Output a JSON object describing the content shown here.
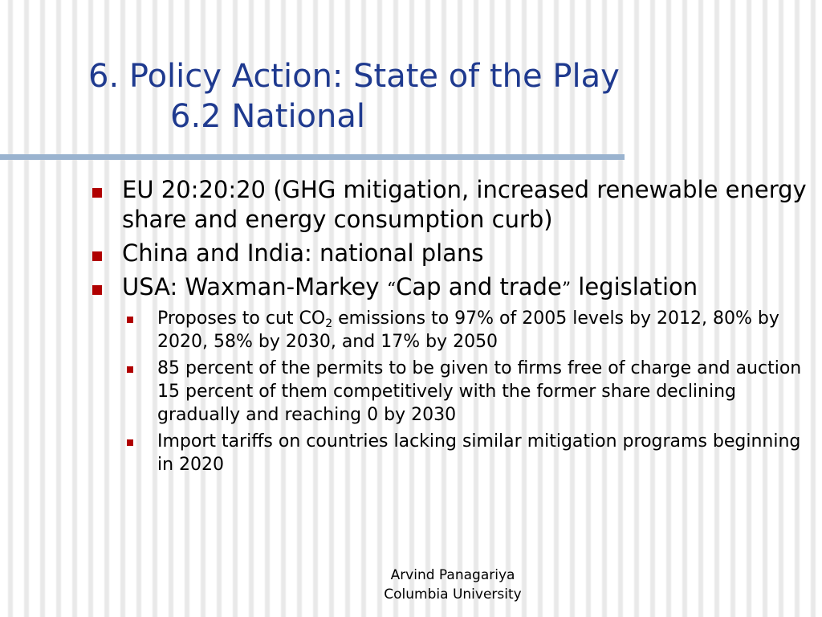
{
  "title": {
    "line1": "6. Policy Action: State of the Play",
    "line2": "6.2 National"
  },
  "bullets": [
    {
      "text": "EU 20:20:20 (GHG mitigation, increased renewable energy share and energy consumption curb)"
    },
    {
      "text": "China and India: national plans"
    },
    {
      "text_before": "USA: Waxman-Markey ",
      "quote_open": "“",
      "quoted": "Cap and trade",
      "quote_close": "”",
      "text_after": " legislation",
      "sub_bullets": [
        {
          "text_before": "Proposes to cut CO",
          "subscript": "2",
          "text_after": " emissions to 97% of 2005 levels by 2012, 80% by 2020, 58% by 2030, and 17% by 2050"
        },
        {
          "text": "85 percent of the permits to be given to firms free of charge and auction 15 percent of them competitively with the former share declining gradually and reaching 0 by 2030"
        },
        {
          "text": "Import tariffs on countries lacking similar mitigation programs beginning in 2020"
        }
      ]
    }
  ],
  "footer": {
    "line1": "Arvind Panagariya",
    "line2": "Columbia University"
  },
  "colors": {
    "title": "#1f3a8f",
    "bullet": "#b00000",
    "rule": "#9ab3cf"
  }
}
